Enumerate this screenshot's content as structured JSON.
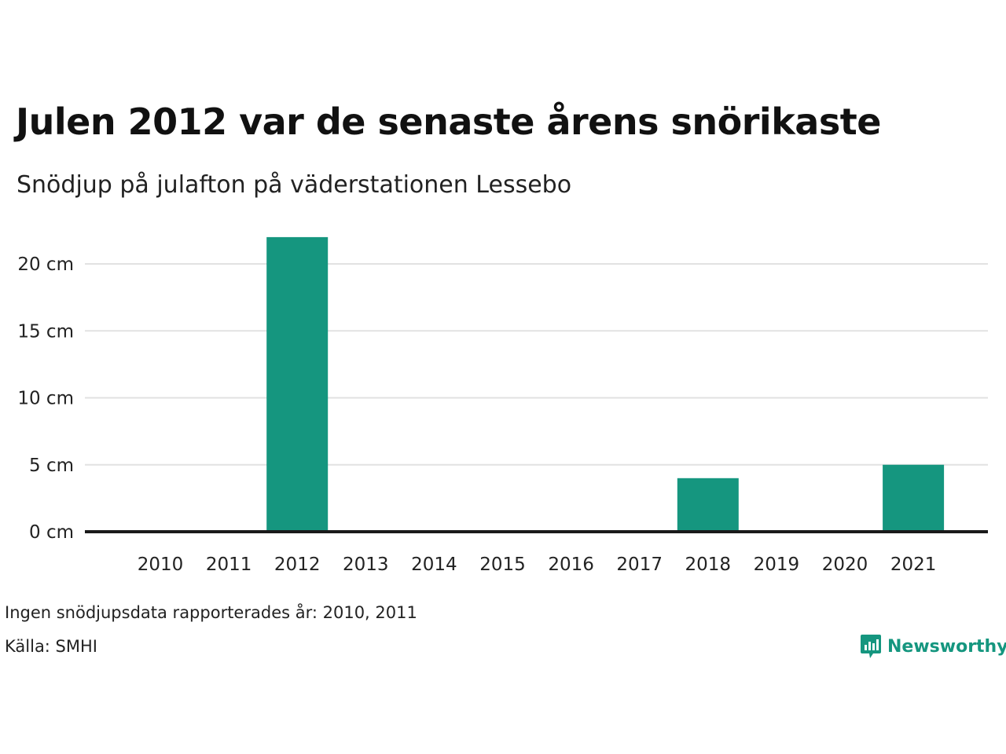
{
  "title": "Julen 2012 var de senaste årens snörikaste",
  "subtitle": "Snödjup på julafton på väderstationen Lessebo",
  "footnote": "Ingen snödjupsdata rapporterades år: 2010, 2011",
  "source": "Källa: SMHI",
  "brand": {
    "name": "Newsworthy",
    "icon": "newsworthy-logo-icon"
  },
  "colors": {
    "bar": "#15967f",
    "grid": "#e2e2e2",
    "baseline": "#1a1a1a",
    "brand": "#15967f"
  },
  "chart_data": {
    "type": "bar",
    "categories": [
      "2010",
      "2011",
      "2012",
      "2013",
      "2014",
      "2015",
      "2016",
      "2017",
      "2018",
      "2019",
      "2020",
      "2021"
    ],
    "values": [
      null,
      null,
      22,
      0,
      0,
      0,
      0,
      0,
      4,
      0,
      0,
      5
    ],
    "ylim": [
      0,
      22
    ],
    "yticks": [
      0,
      5,
      10,
      15,
      20
    ],
    "ytick_labels": [
      "0 cm",
      "5 cm",
      "10 cm",
      "15 cm",
      "20 cm"
    ],
    "grid": true,
    "xlabel": "",
    "ylabel": ""
  }
}
